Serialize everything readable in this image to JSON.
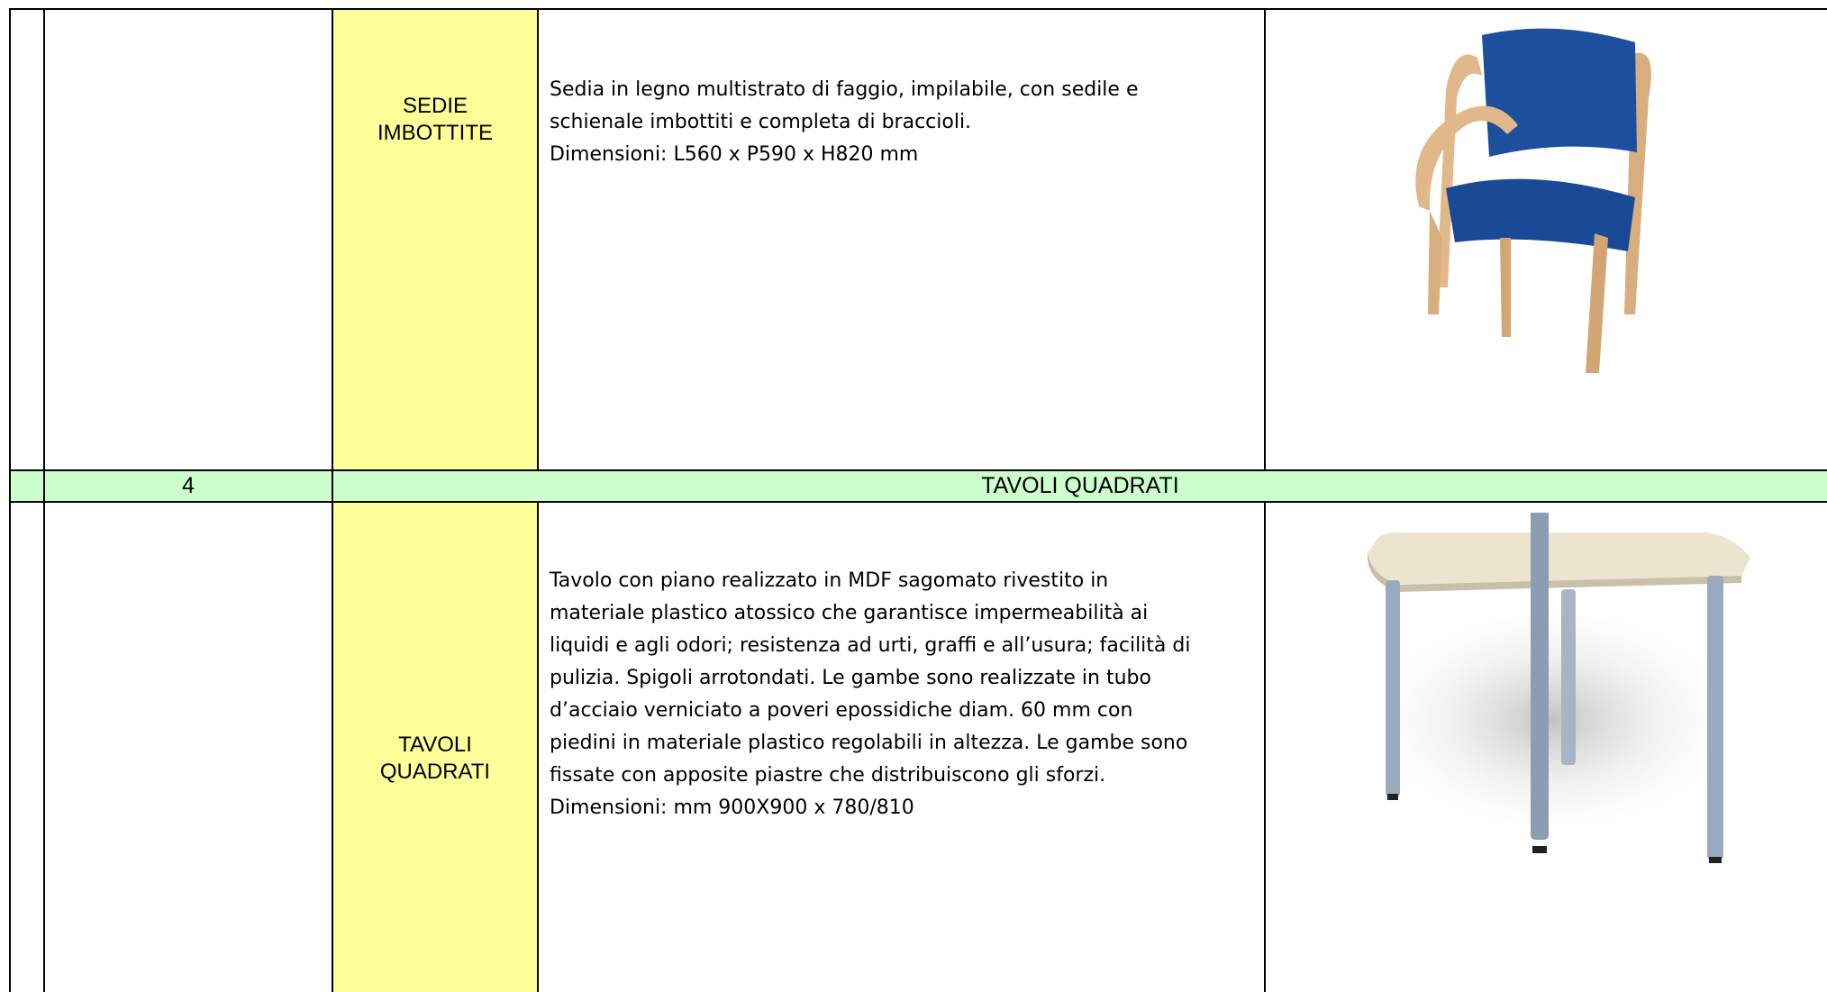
{
  "table": {
    "rows": [
      {
        "name": [
          "SEDIE",
          "IMBOTTITE"
        ],
        "description": [
          "Sedia in legno multistrato di faggio, impilabile, con sedile e",
          "schienale imbottiti e completa di braccioli.",
          "Dimensioni: L560  x P590 x H820 mm"
        ]
      },
      {
        "number": "4",
        "title": "TAVOLI QUADRATI"
      },
      {
        "name": [
          "TAVOLI",
          "QUADRATI"
        ],
        "description": [
          "Tavolo con piano realizzato in MDF sagomato rivestito in",
          "materiale plastico atossico che garantisce impermeabilità ai",
          "liquidi e agli odori; resistenza ad urti, graffi e all’usura; facilità di",
          "pulizia. Spigoli arrotondati. Le gambe sono realizzate in tubo",
          "d’acciaio verniciato a poveri epossidiche diam. 60 mm con",
          "piedini in materiale plastico regolabili in altezza. Le gambe sono",
          "fissate con apposite piastre che distribuiscono gli sforzi.",
          "Dimensioni: mm 900X900 x 780/810"
        ]
      }
    ]
  }
}
